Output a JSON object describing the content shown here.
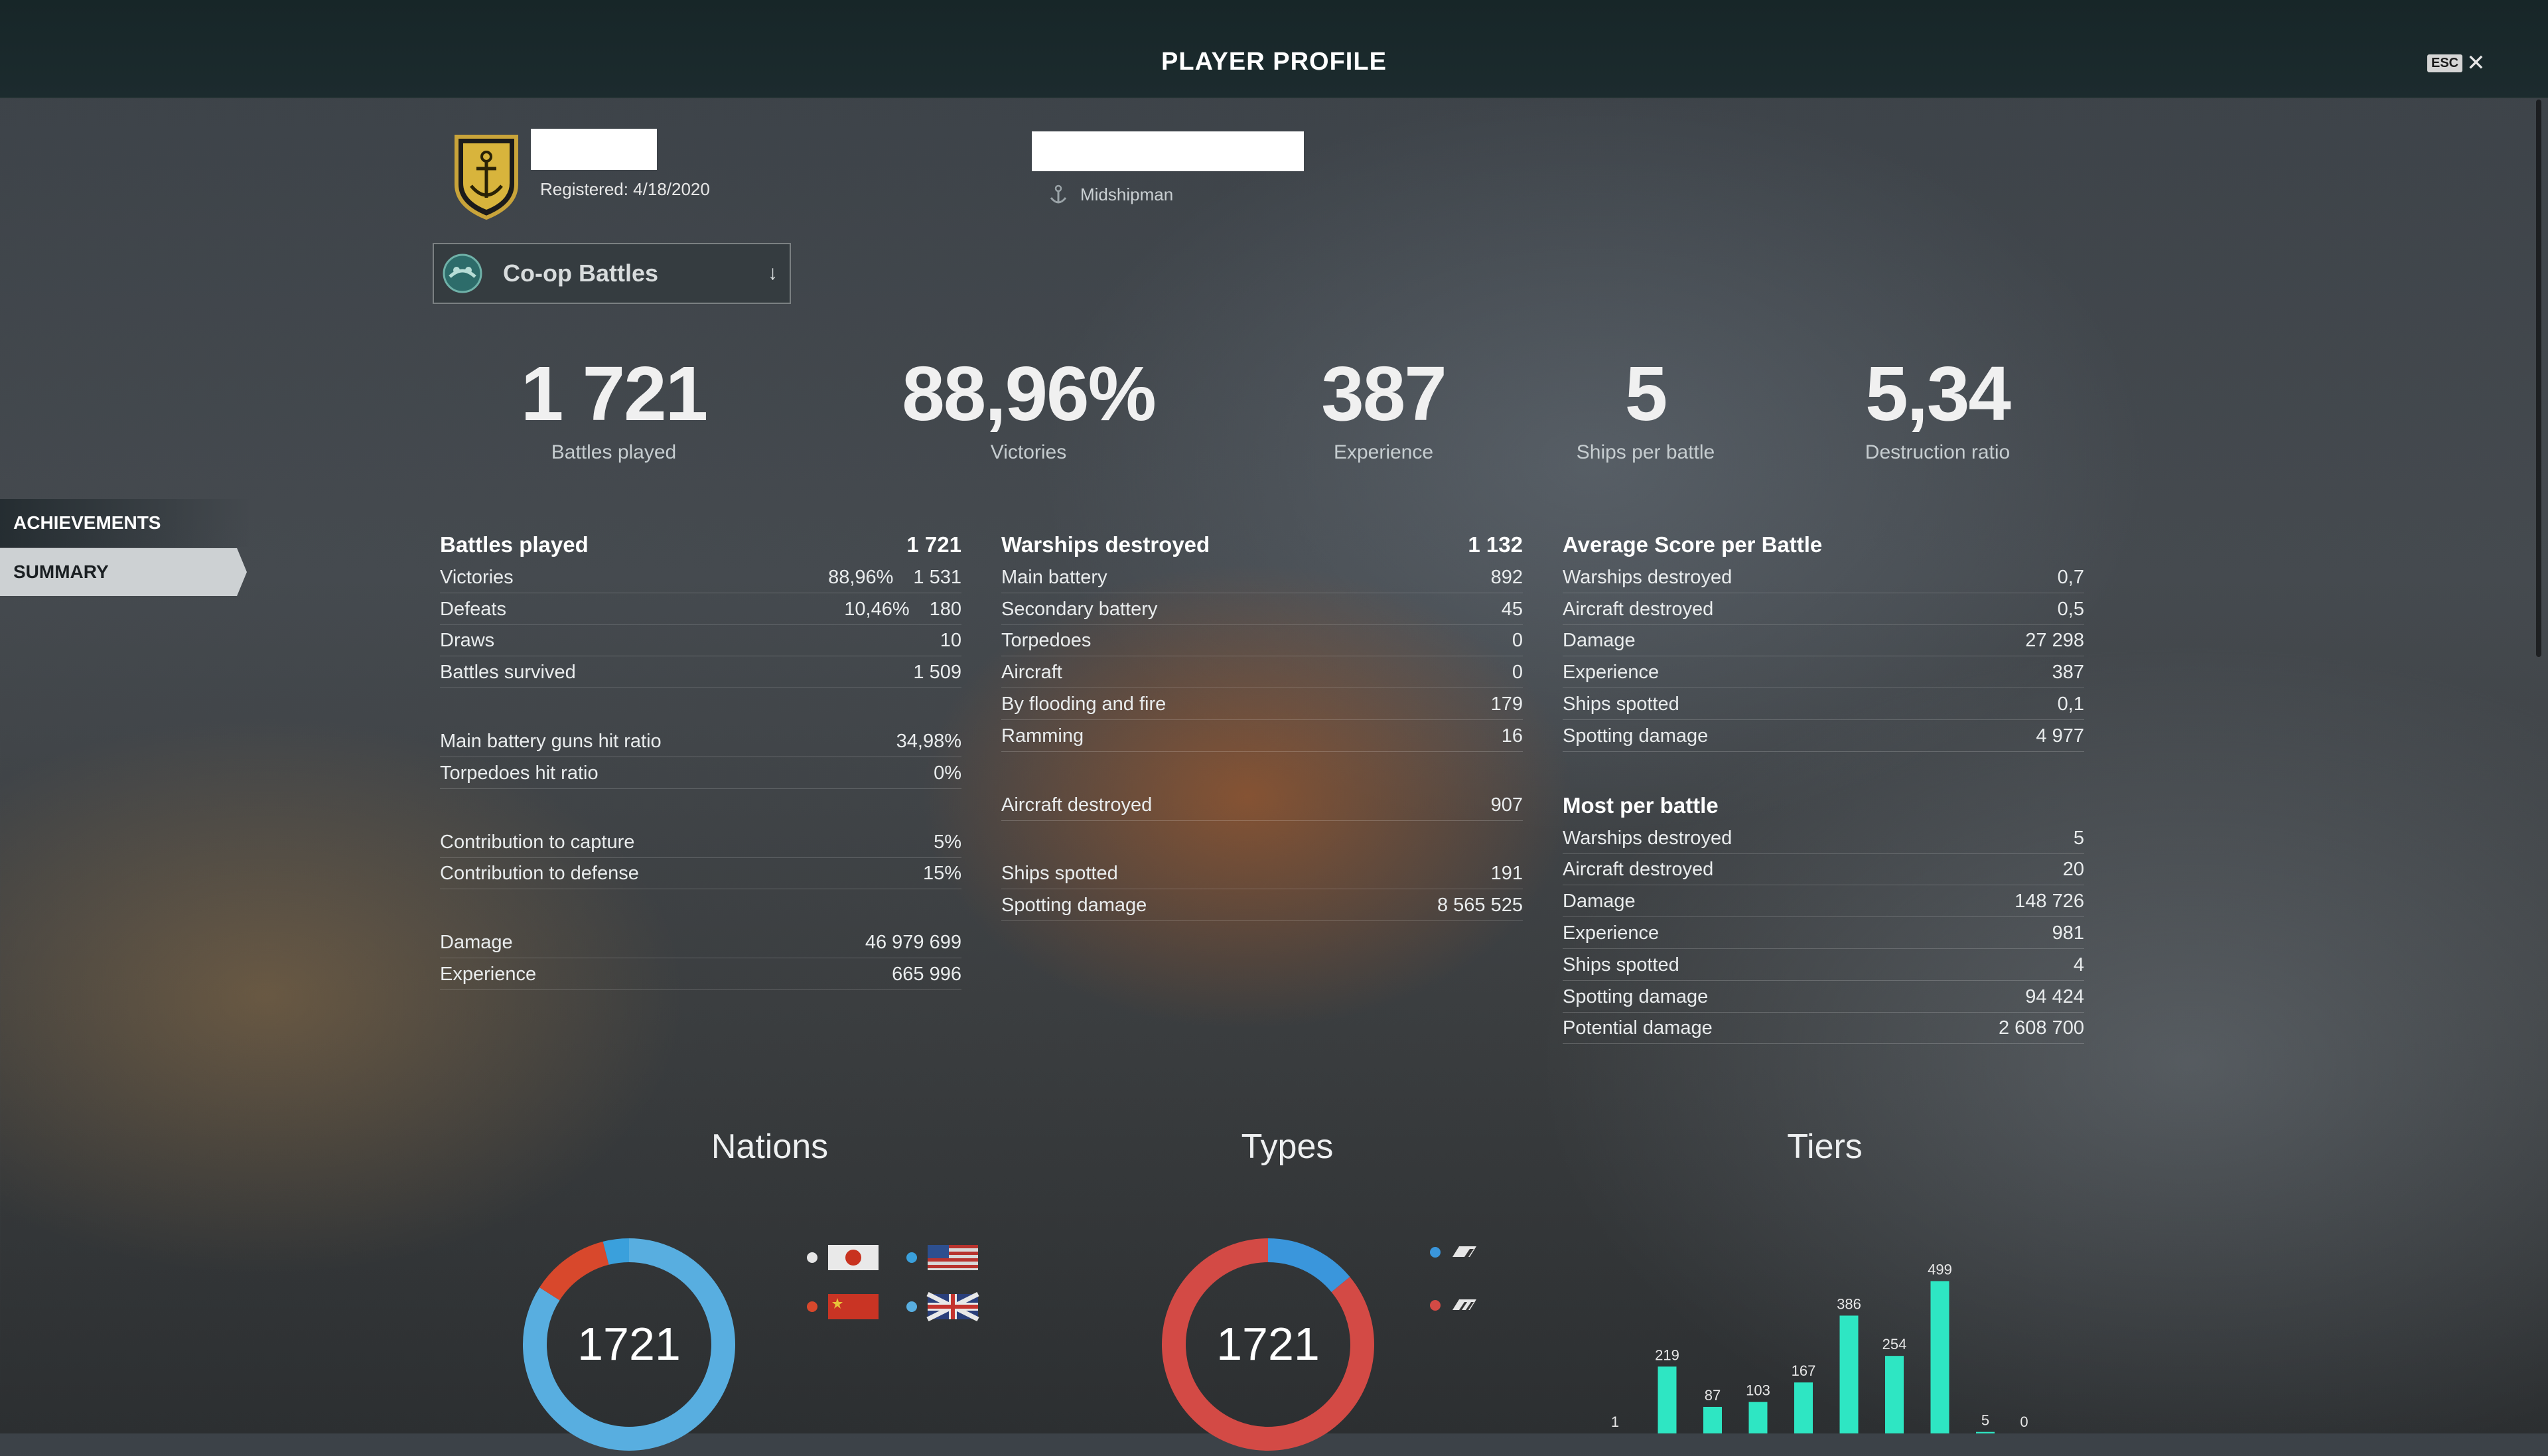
{
  "header": {
    "title": "PLAYER PROFILE",
    "esc_key": "ESC"
  },
  "profile": {
    "registered": "Registered: 4/18/2020",
    "rank": "Midshipman"
  },
  "mode_select": {
    "selected": "Co-op Battles"
  },
  "nav": {
    "achievements": "ACHIEVEMENTS",
    "summary": "SUMMARY"
  },
  "big_stats": [
    {
      "value": "1 721",
      "label": "Battles played"
    },
    {
      "value": "88,96%",
      "label": "Victories"
    },
    {
      "value": "387",
      "label": "Experience"
    },
    {
      "value": "5",
      "label": "Ships per battle"
    },
    {
      "value": "5,34",
      "label": "Destruction ratio"
    }
  ],
  "battles": {
    "header": {
      "label": "Battles played",
      "value": "1 721"
    },
    "rows": [
      {
        "label": "Victories",
        "pct": "88,96%",
        "value": "1 531"
      },
      {
        "label": "Defeats",
        "pct": "10,46%",
        "value": "180"
      },
      {
        "label": "Draws",
        "value": "10"
      },
      {
        "label": "Battles survived",
        "value": "1 509"
      }
    ],
    "accuracy": [
      {
        "label": "Main battery guns hit ratio",
        "value": "34,98%"
      },
      {
        "label": "Torpedoes hit ratio",
        "value": "0%"
      }
    ],
    "contribution": [
      {
        "label": "Contribution to capture",
        "value": "5%"
      },
      {
        "label": "Contribution to defense",
        "value": "15%"
      }
    ],
    "totals": [
      {
        "label": "Damage",
        "value": "46 979 699"
      },
      {
        "label": "Experience",
        "value": "665 996"
      }
    ]
  },
  "warships": {
    "header": {
      "label": "Warships destroyed",
      "value": "1 132"
    },
    "rows": [
      {
        "label": "Main battery",
        "value": "892"
      },
      {
        "label": "Secondary battery",
        "value": "45"
      },
      {
        "label": "Torpedoes",
        "value": "0"
      },
      {
        "label": "Aircraft",
        "value": "0"
      },
      {
        "label": "By flooding and fire",
        "value": "179"
      },
      {
        "label": "Ramming",
        "value": "16"
      }
    ],
    "aircraft": [
      {
        "label": "Aircraft destroyed",
        "value": "907"
      }
    ],
    "spotting": [
      {
        "label": "Ships spotted",
        "value": "191"
      },
      {
        "label": "Spotting damage",
        "value": "8 565 525"
      }
    ]
  },
  "average": {
    "header": "Average Score per Battle",
    "rows": [
      {
        "label": "Warships destroyed",
        "value": "0,7"
      },
      {
        "label": "Aircraft destroyed",
        "value": "0,5"
      },
      {
        "label": "Damage",
        "value": "27 298"
      },
      {
        "label": "Experience",
        "value": "387"
      },
      {
        "label": "Ships spotted",
        "value": "0,1"
      },
      {
        "label": "Spotting damage",
        "value": "4 977"
      }
    ]
  },
  "most": {
    "header": "Most per battle",
    "rows": [
      {
        "label": "Warships destroyed",
        "value": "5"
      },
      {
        "label": "Aircraft destroyed",
        "value": "20"
      },
      {
        "label": "Damage",
        "value": "148 726"
      },
      {
        "label": "Experience",
        "value": "981"
      },
      {
        "label": "Ships spotted",
        "value": "4"
      },
      {
        "label": "Spotting damage",
        "value": "94 424"
      },
      {
        "label": "Potential damage",
        "value": "2 608 700"
      }
    ]
  },
  "charts": {
    "nations": {
      "title": "Nations",
      "total": "1721",
      "colors": {
        "blue": "#3aa0dc",
        "red": "#d8482c",
        "light": "#58aee0"
      },
      "legend": [
        {
          "flag": "japan-flag-icon",
          "dot": "#e6e6e6"
        },
        {
          "flag": "usa-flag-icon",
          "dot": "#3aa0dc"
        },
        {
          "flag": "china-flag-icon",
          "dot": "#d8482c"
        },
        {
          "flag": "uk-flag-icon",
          "dot": "#58aee0"
        }
      ]
    },
    "types": {
      "title": "Types",
      "total": "1721",
      "colors": {
        "blue": "#3a96dc",
        "red": "#d34a45"
      },
      "legend": [
        {
          "icon": "destroyer-class-icon",
          "dot": "#3a96dc"
        },
        {
          "icon": "cruiser-class-icon",
          "dot": "#d34a45"
        }
      ]
    },
    "tiers": {
      "title": "Tiers",
      "color": "#2ee6c3"
    }
  },
  "chart_data": [
    {
      "type": "pie",
      "title": "Nations",
      "center_label": "1721",
      "slices": [
        {
          "color": "#58aee0",
          "fraction": 0.84
        },
        {
          "color": "#d8482c",
          "fraction": 0.12
        },
        {
          "color": "#3aa0dc",
          "fraction": 0.04
        }
      ]
    },
    {
      "type": "pie",
      "title": "Types",
      "center_label": "1721",
      "slices": [
        {
          "color": "#3a96dc",
          "fraction": 0.14
        },
        {
          "color": "#d34a45",
          "fraction": 0.86
        }
      ]
    },
    {
      "type": "bar",
      "title": "Tiers",
      "values": [
        1,
        219,
        87,
        103,
        167,
        386,
        254,
        499,
        5,
        0
      ],
      "ylim": [
        0,
        500
      ]
    }
  ]
}
